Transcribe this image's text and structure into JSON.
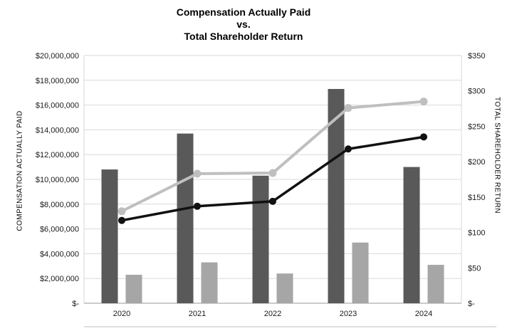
{
  "title": {
    "line1": "Compensation Actually Paid",
    "line2": "vs.",
    "line3": "Total Shareholder Return"
  },
  "chart_data": {
    "type": "bar",
    "subtype": "combo-bar-line-dual-axis",
    "title": "Compensation Actually Paid vs. Total Shareholder Return",
    "categories": [
      "2020",
      "2021",
      "2022",
      "2023",
      "2024"
    ],
    "bar_series": [
      {
        "name": "dark-gray-bars",
        "color": "#595959",
        "axis": "left",
        "values": [
          10800000,
          13700000,
          10300000,
          17300000,
          11000000
        ]
      },
      {
        "name": "light-gray-bars",
        "color": "#a6a6a6",
        "axis": "left",
        "values": [
          2300000,
          3300000,
          2400000,
          4900000,
          3100000
        ]
      }
    ],
    "line_series": [
      {
        "name": "gray-line",
        "color": "#bfbfbf",
        "axis": "right",
        "values": [
          130,
          183,
          184,
          276,
          285
        ]
      },
      {
        "name": "black-line",
        "color": "#111111",
        "axis": "right",
        "values": [
          117,
          137,
          144,
          218,
          235
        ]
      }
    ],
    "left_axis": {
      "label": "COMPENSATION ACTUALLY PAID",
      "min": 0,
      "max": 20000000,
      "step": 2000000,
      "tick_labels": [
        "$-",
        "$2,000,000",
        "$4,000,000",
        "$6,000,000",
        "$8,000,000",
        "$10,000,000",
        "$12,000,000",
        "$14,000,000",
        "$16,000,000",
        "$18,000,000",
        "$20,000,000"
      ]
    },
    "right_axis": {
      "label": "TOTAL SHAREHOLDER RETURN",
      "min": 0,
      "max": 350,
      "step": 50,
      "tick_labels": [
        "$-",
        "$50",
        "$100",
        "$150",
        "$200",
        "$250",
        "$300",
        "$350"
      ]
    },
    "legend": "none",
    "grid": "horizontal",
    "colors": {
      "gridline": "#d9d9d9",
      "axis_line": "#9a9a9a",
      "tick_text": "#1a1a1a"
    }
  }
}
